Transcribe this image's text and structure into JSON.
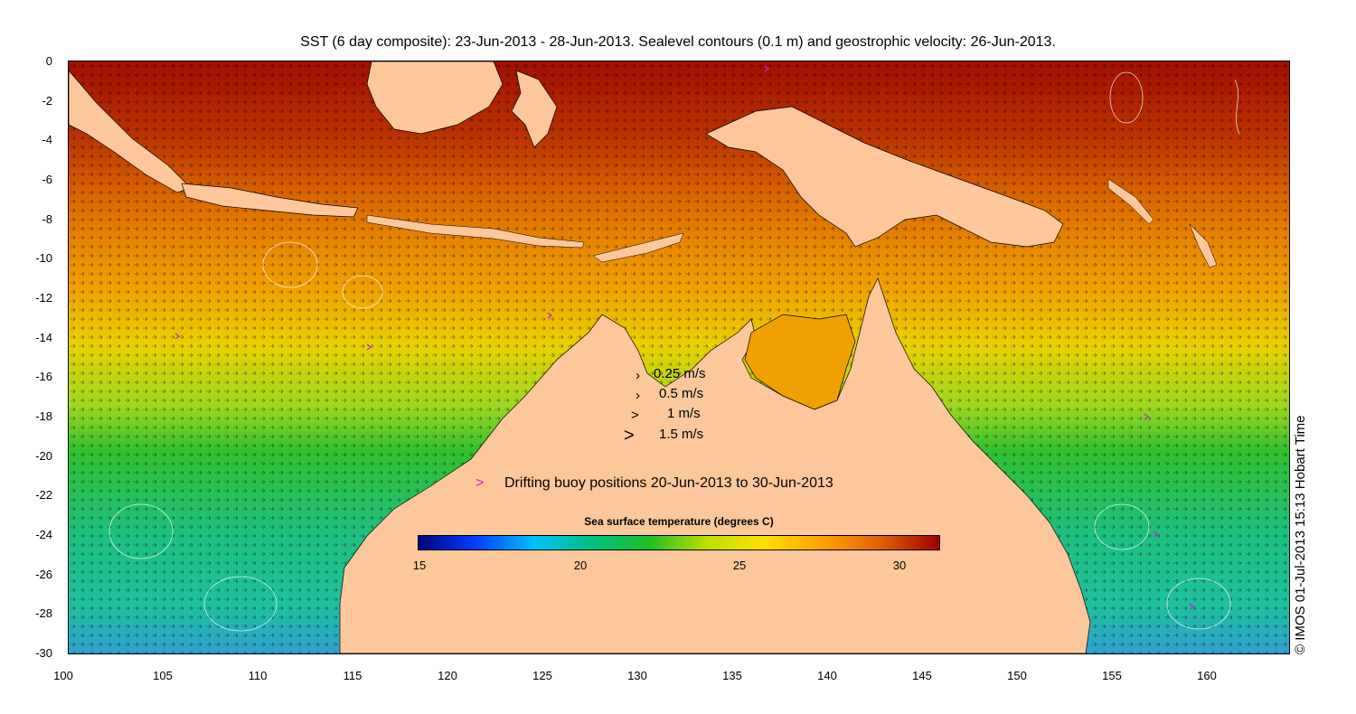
{
  "title": "SST (6 day composite): 23-Jun-2013 - 28-Jun-2013. Sealevel contours (0.1 m) and geostrophic velocity: 26-Jun-2013.",
  "copyright": "© IMOS 01-Jul-2013 15:13 Hobart Time",
  "axes": {
    "y_ticks": [
      "0",
      "-2",
      "-4",
      "-6",
      "-8",
      "-10",
      "-12",
      "-14",
      "-16",
      "-18",
      "-20",
      "-22",
      "-24",
      "-26",
      "-28",
      "-30"
    ],
    "x_ticks": [
      "100",
      "105",
      "110",
      "115",
      "120",
      "125",
      "130",
      "135",
      "140",
      "145",
      "150",
      "155",
      "160"
    ]
  },
  "velocity_legend": [
    {
      "label": "0.25 m/s"
    },
    {
      "label": "0.5 m/s"
    },
    {
      "label": "1 m/s"
    },
    {
      "label": "1.5 m/s"
    }
  ],
  "buoy_legend": {
    "marker": ">",
    "label": "Drifting buoy positions 20-Jun-2013 to 30-Jun-2013",
    "color": "#d020d0"
  },
  "colorbar": {
    "title": "Sea surface temperature (degrees C)",
    "ticks": [
      "15",
      "20",
      "25",
      "30"
    ],
    "colors": [
      "#00007f",
      "#0040ff",
      "#00c0ff",
      "#00c080",
      "#20c020",
      "#c0e000",
      "#ffe000",
      "#ffa000",
      "#e06000",
      "#a00000"
    ]
  },
  "colors": {
    "land": "#fcc89b",
    "warm_sea": "#c04000",
    "hot_sea": "#a01000",
    "mid_sea": "#f0a000",
    "cool_sea": "#20c060",
    "buoy": "#d020d0"
  }
}
